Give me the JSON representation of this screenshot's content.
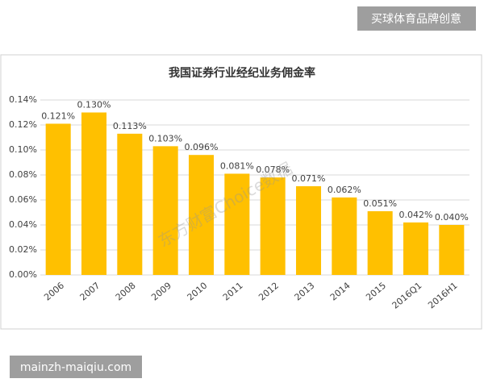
{
  "badges": {
    "top": "买球体育品牌创意",
    "bottom": "mainzh-maiqiu.com"
  },
  "chart_data": {
    "type": "bar",
    "title": "我国证券行业经纪业务佣金率",
    "categories": [
      "2006",
      "2007",
      "2008",
      "2009",
      "2010",
      "2011",
      "2012",
      "2013",
      "2014",
      "2015",
      "2016Q1",
      "2016H1"
    ],
    "values": [
      0.121,
      0.13,
      0.113,
      0.103,
      0.096,
      0.081,
      0.078,
      0.071,
      0.062,
      0.051,
      0.042,
      0.04
    ],
    "value_labels": [
      "0.121%",
      "0.130%",
      "0.113%",
      "0.103%",
      "0.096%",
      "0.081%",
      "0.078%",
      "0.071%",
      "0.062%",
      "0.051%",
      "0.042%",
      "0.040%"
    ],
    "color": "#ffc000",
    "ylim": [
      0,
      0.14
    ],
    "yticks": [
      {
        "value": 0,
        "label": "0.00%"
      },
      {
        "value": 0.02,
        "label": "0.02%"
      },
      {
        "value": 0.04,
        "label": "0.04%"
      },
      {
        "value": 0.06,
        "label": "0.06%"
      },
      {
        "value": 0.08,
        "label": "0.08%"
      },
      {
        "value": 0.1,
        "label": "0.10%"
      },
      {
        "value": 0.12,
        "label": "0.12%"
      },
      {
        "value": 0.14,
        "label": "0.14%"
      }
    ],
    "grid": true,
    "watermark": "东方财富Choice数据"
  }
}
